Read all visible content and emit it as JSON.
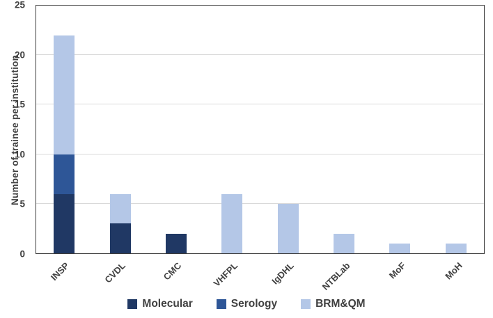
{
  "chart_data": {
    "type": "bar",
    "stacked": true,
    "title": "",
    "categories": [
      "INSP",
      "CVDL",
      "CMC",
      "VHFPL",
      "IgDHL",
      "NTBLab",
      "MoF",
      "MoH"
    ],
    "series": [
      {
        "name": "Molecular",
        "color": "#203864",
        "values": [
          6,
          3,
          2,
          0,
          0,
          0,
          0,
          0
        ]
      },
      {
        "name": "Serology",
        "color": "#2E5697",
        "values": [
          4,
          0,
          0,
          0,
          0,
          0,
          0,
          0
        ]
      },
      {
        "name": "BRM&QM",
        "color": "#B4C7E7",
        "values": [
          12,
          3,
          0,
          6,
          5,
          2,
          1,
          1
        ]
      }
    ],
    "stack_totals": [
      22,
      6,
      2,
      6,
      5,
      2,
      1,
      1
    ],
    "xlabel": "",
    "ylabel": "Number of trainee per institution",
    "ylim": [
      0,
      25
    ],
    "yticks": [
      0,
      5,
      10,
      15,
      20,
      25
    ],
    "grid": true,
    "gridline_color": "#d9d9d9",
    "axis_text_color": "#404040",
    "plot_border_color": "#3b3b3b",
    "legend_position": "bottom"
  }
}
